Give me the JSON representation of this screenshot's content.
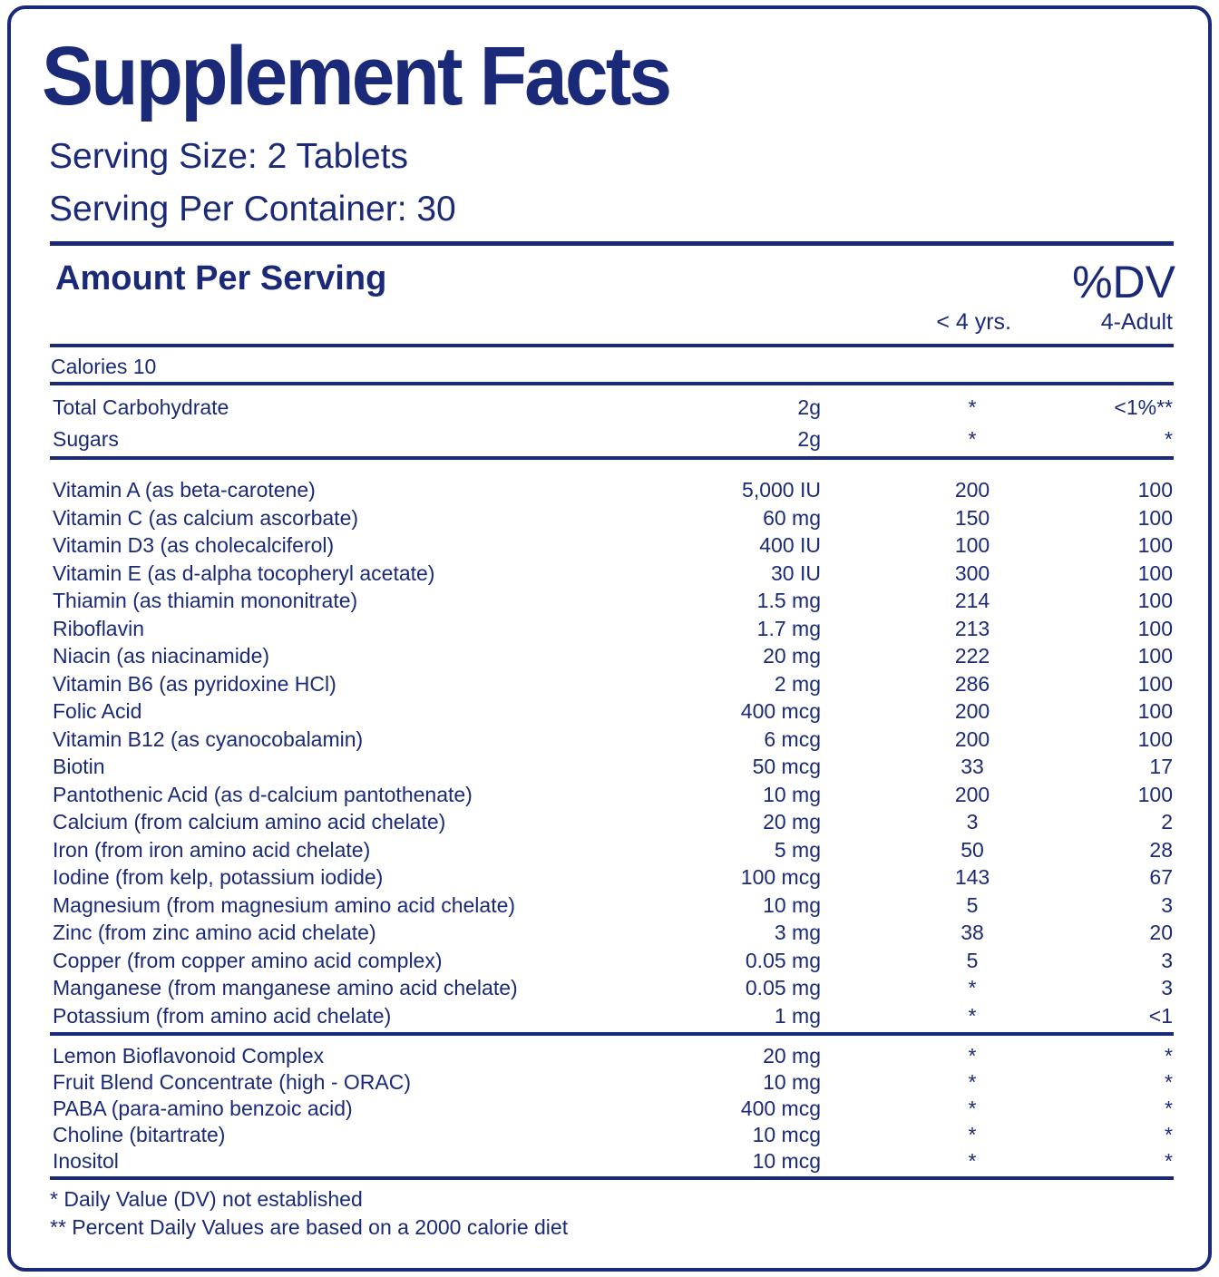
{
  "header": {
    "title": "Supplement Facts",
    "serving_size": "Serving Size: 2 Tablets",
    "servings_per_container": "Serving Per Container: 30"
  },
  "columns": {
    "amount_per_serving": "Amount Per Serving",
    "dv": "%DV",
    "under_4": "< 4 yrs.",
    "adult": "4-Adult"
  },
  "calories": "Calories 10",
  "sections": [
    [
      [
        "Total Carbohydrate",
        "2g",
        "*",
        "<1%**"
      ],
      [
        "Sugars",
        "2g",
        "*",
        "*"
      ]
    ],
    [
      [
        "Vitamin A (as beta-carotene)",
        "5,000 IU",
        "200",
        "100"
      ],
      [
        "Vitamin C (as calcium ascorbate)",
        "60 mg",
        "150",
        "100"
      ],
      [
        "Vitamin D3 (as cholecalciferol)",
        "400 IU",
        "100",
        "100"
      ],
      [
        "Vitamin E (as d-alpha tocopheryl acetate)",
        "30 IU",
        "300",
        "100"
      ],
      [
        "Thiamin (as thiamin mononitrate)",
        "1.5 mg",
        "214",
        "100"
      ],
      [
        "Riboflavin",
        "1.7 mg",
        "213",
        "100"
      ],
      [
        "Niacin (as niacinamide)",
        "20 mg",
        "222",
        "100"
      ],
      [
        "Vitamin B6 (as pyridoxine HCl)",
        "2 mg",
        "286",
        "100"
      ],
      [
        "Folic Acid",
        "400 mcg",
        "200",
        "100"
      ],
      [
        "Vitamin B12 (as cyanocobalamin)",
        "6 mcg",
        "200",
        "100"
      ],
      [
        "Biotin",
        "50 mcg",
        "33",
        "17"
      ],
      [
        "Pantothenic Acid (as d-calcium pantothenate)",
        "10 mg",
        "200",
        "100"
      ],
      [
        "Calcium (from calcium amino acid chelate)",
        "20 mg",
        "3",
        "2"
      ],
      [
        "Iron (from iron amino acid chelate)",
        "5 mg",
        "50",
        "28"
      ],
      [
        "Iodine (from kelp, potassium iodide)",
        "100 mcg",
        "143",
        "67"
      ],
      [
        "Magnesium (from magnesium amino acid chelate)",
        "10 mg",
        "5",
        "3"
      ],
      [
        "Zinc (from zinc amino acid chelate)",
        "3 mg",
        "38",
        "20"
      ],
      [
        "Copper (from copper amino acid complex)",
        "0.05 mg",
        "5",
        "3"
      ],
      [
        "Manganese (from manganese amino acid chelate)",
        "0.05 mg",
        "*",
        "3"
      ],
      [
        "Potassium (from amino acid chelate)",
        "1 mg",
        "*",
        "<1"
      ]
    ],
    [
      [
        "Lemon Bioflavonoid Complex",
        "20 mg",
        "*",
        "*"
      ],
      [
        "Fruit Blend Concentrate (high - ORAC)",
        "10 mg",
        "*",
        "*"
      ],
      [
        "PABA (para-amino benzoic acid)",
        "400 mcg",
        "*",
        "*"
      ],
      [
        "Choline (bitartrate)",
        "10 mcg",
        "*",
        "*"
      ],
      [
        "Inositol",
        "10 mcg",
        "*",
        "*"
      ]
    ]
  ],
  "footnotes": [
    "* Daily Value (DV) not established",
    "** Percent Daily Values are based on a 2000 calorie diet"
  ]
}
